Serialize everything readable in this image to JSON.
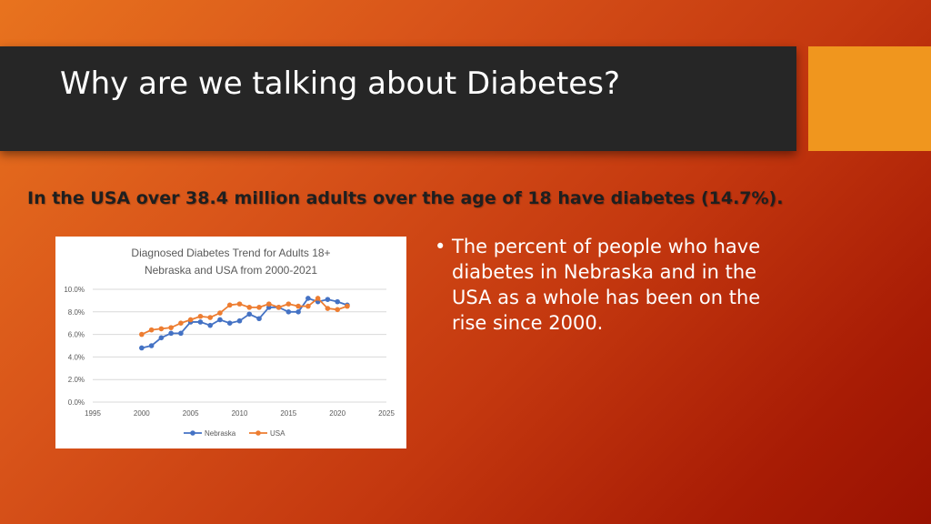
{
  "slide": {
    "title": "Why are we talking about Diabetes?",
    "subtitle": "In the USA over 38.4 million adults over the age of 18 have diabetes (14.7%).",
    "bullet_symbol": "•",
    "bullet_text": "The percent of people who have diabetes in Nebraska and in the USA as a whole has been on the rise since 2000.",
    "accent_color": "#f0961e",
    "title_bar_color": "#262626"
  },
  "chart_data": {
    "type": "line",
    "title_line1": "Diagnosed Diabetes Trend for Adults 18+",
    "title_line2": "Nebraska and USA from 2000-2021",
    "xlim": [
      1995,
      2025
    ],
    "ylim": [
      0,
      10
    ],
    "x_ticks": [
      1995,
      2000,
      2005,
      2010,
      2015,
      2020,
      2025
    ],
    "y_ticks": [
      "0.0%",
      "2.0%",
      "4.0%",
      "6.0%",
      "8.0%",
      "10.0%"
    ],
    "grid": true,
    "legend_position": "bottom",
    "series": [
      {
        "name": "Nebraska",
        "color": "#4472c4",
        "x": [
          2000,
          2001,
          2002,
          2003,
          2004,
          2005,
          2006,
          2007,
          2008,
          2009,
          2010,
          2011,
          2012,
          2013,
          2014,
          2015,
          2016,
          2017,
          2018,
          2019,
          2020,
          2021
        ],
        "values": [
          4.8,
          5.0,
          5.7,
          6.1,
          6.1,
          7.1,
          7.1,
          6.8,
          7.3,
          7.0,
          7.2,
          7.8,
          7.4,
          8.4,
          8.4,
          8.0,
          8.0,
          9.2,
          8.9,
          9.1,
          8.9,
          8.6
        ]
      },
      {
        "name": "USA",
        "color": "#ed7d31",
        "x": [
          2000,
          2001,
          2002,
          2003,
          2004,
          2005,
          2006,
          2007,
          2008,
          2009,
          2010,
          2011,
          2012,
          2013,
          2014,
          2015,
          2016,
          2017,
          2018,
          2019,
          2020,
          2021
        ],
        "values": [
          6.0,
          6.4,
          6.5,
          6.6,
          7.0,
          7.3,
          7.6,
          7.5,
          7.9,
          8.6,
          8.7,
          8.4,
          8.4,
          8.7,
          8.4,
          8.7,
          8.5,
          8.5,
          9.2,
          8.3,
          8.2,
          8.5
        ]
      }
    ]
  }
}
